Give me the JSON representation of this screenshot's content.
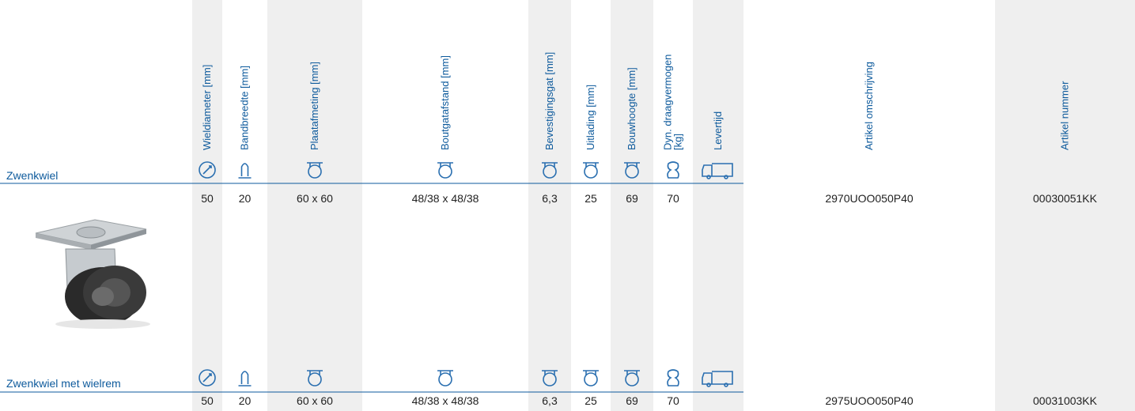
{
  "columns": [
    {
      "header": [
        "Wieldiameter [mm]"
      ]
    },
    {
      "header": [
        "Bandbreedte [mm]"
      ]
    },
    {
      "header": [
        "Plaatafmeting [mm]"
      ]
    },
    {
      "header": [
        "Boutgatafstand [mm]"
      ]
    },
    {
      "header": [
        "Bevestigingsgat [mm]"
      ]
    },
    {
      "header": [
        "Uitlading [mm]"
      ]
    },
    {
      "header": [
        "Bouwhoogte [mm]"
      ]
    },
    {
      "header": [
        "Dyn. draagvermogen",
        "[kg]"
      ]
    },
    {
      "header": [
        "Levertijd"
      ]
    },
    {
      "header": [
        "Artikel omschrijving"
      ]
    },
    {
      "header": [
        "Artikel nummer"
      ]
    }
  ],
  "rows": [
    {
      "label": "Zwenkwiel",
      "values": [
        50,
        20,
        "60 x 60",
        "48/38 x 48/38",
        "6,3",
        25,
        69,
        70,
        null,
        "2970UOO050P40",
        "00030051KK"
      ]
    },
    {
      "label": "Zwenkwiel met wielrem",
      "values": [
        50,
        20,
        "60 x 60",
        "48/38 x 48/38",
        "6,3",
        25,
        69,
        70,
        null,
        "2975UOO050P40",
        "00031003KK"
      ]
    }
  ]
}
